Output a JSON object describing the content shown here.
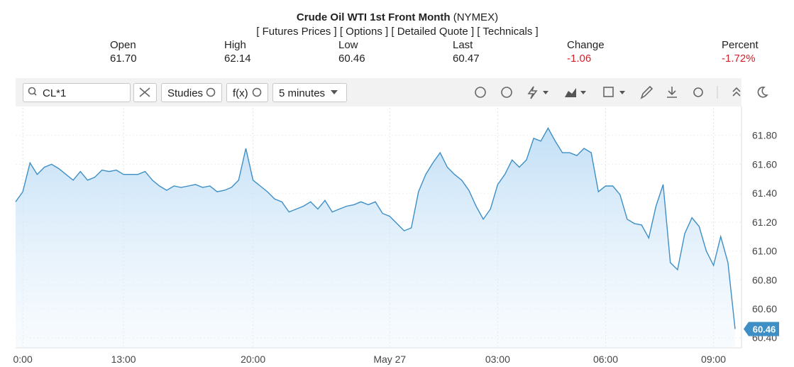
{
  "header": {
    "title": "Crude Oil WTI 1st Front Month",
    "exchange": "(NYMEX)",
    "links": [
      "[ Futures Prices ]",
      "[ Options ]",
      "[ Detailed Quote ]",
      "[ Technicals ]"
    ]
  },
  "quote": [
    {
      "label": "Open",
      "value": "61.70"
    },
    {
      "label": "High",
      "value": "62.14"
    },
    {
      "label": "Low",
      "value": "60.46"
    },
    {
      "label": "Last",
      "value": "60.47"
    },
    {
      "label": "Change",
      "value": "-1.06"
    },
    {
      "label": "Percent",
      "value": "-1.72%"
    }
  ],
  "toolbar": {
    "symbol": "CL*1",
    "studies": "Studies",
    "fx": "f(x)",
    "interval": "5 minutes"
  },
  "chart_data": {
    "type": "line",
    "color": "#3d8fc6",
    "categories": [
      null,
      "0:00",
      null,
      null,
      null,
      null,
      null,
      null,
      null,
      null,
      null,
      null,
      null,
      null,
      null,
      "13:00",
      null,
      null,
      null,
      null,
      null,
      null,
      null,
      null,
      null,
      null,
      null,
      null,
      null,
      null,
      null,
      null,
      null,
      "20:00",
      null,
      null,
      null,
      null,
      null,
      null,
      null,
      null,
      null,
      null,
      null,
      null,
      null,
      null,
      null,
      null,
      null,
      null,
      "May 27",
      null,
      null,
      null,
      null,
      null,
      null,
      null,
      null,
      null,
      null,
      null,
      null,
      null,
      null,
      "03:00",
      null,
      null,
      null,
      null,
      null,
      null,
      null,
      null,
      null,
      null,
      null,
      null,
      null,
      null,
      "06:00",
      null,
      null,
      null,
      null,
      null,
      null,
      null,
      null,
      null,
      null,
      null,
      null,
      null,
      null,
      "09:00",
      null,
      null,
      null
    ],
    "series": [
      {
        "name": "CL*1",
        "values": [
          61.34,
          61.41,
          61.61,
          61.53,
          61.58,
          61.6,
          61.57,
          61.53,
          61.49,
          61.55,
          61.49,
          61.51,
          61.56,
          61.55,
          61.56,
          61.53,
          61.53,
          61.53,
          61.55,
          61.49,
          61.45,
          61.42,
          61.45,
          61.44,
          61.45,
          61.46,
          61.44,
          61.45,
          61.41,
          61.42,
          61.44,
          61.49,
          61.71,
          61.49,
          61.45,
          61.41,
          61.36,
          61.34,
          61.27,
          61.29,
          61.31,
          61.34,
          61.29,
          61.35,
          61.27,
          61.29,
          61.31,
          61.32,
          61.34,
          61.32,
          61.34,
          61.26,
          61.24,
          61.19,
          61.14,
          61.16,
          61.41,
          61.53,
          61.61,
          61.68,
          61.58,
          61.53,
          61.49,
          61.42,
          61.31,
          61.22,
          61.29,
          61.46,
          61.53,
          61.63,
          61.58,
          61.63,
          61.78,
          61.76,
          61.85,
          61.76,
          61.68,
          61.68,
          61.66,
          61.71,
          61.68,
          61.41,
          61.45,
          61.45,
          61.39,
          61.22,
          61.19,
          61.18,
          61.09,
          61.31,
          61.46,
          60.92,
          60.87,
          61.12,
          61.23,
          61.17,
          61.0,
          60.9,
          61.1,
          60.92,
          60.46
        ]
      }
    ],
    "ylim": [
      60.33,
      61.99
    ],
    "yticks": [
      {
        "value": 60.4,
        "label": "60.40"
      },
      {
        "value": 60.6,
        "label": "60.60"
      },
      {
        "value": 60.8,
        "label": "60.80"
      },
      {
        "value": 61,
        "label": "61.00"
      },
      {
        "value": 61.2,
        "label": "61.20"
      },
      {
        "value": 61.4,
        "label": "61.40"
      },
      {
        "value": 61.6,
        "label": "61.60"
      },
      {
        "value": 61.8,
        "label": "61.80"
      }
    ],
    "grid": true
  }
}
